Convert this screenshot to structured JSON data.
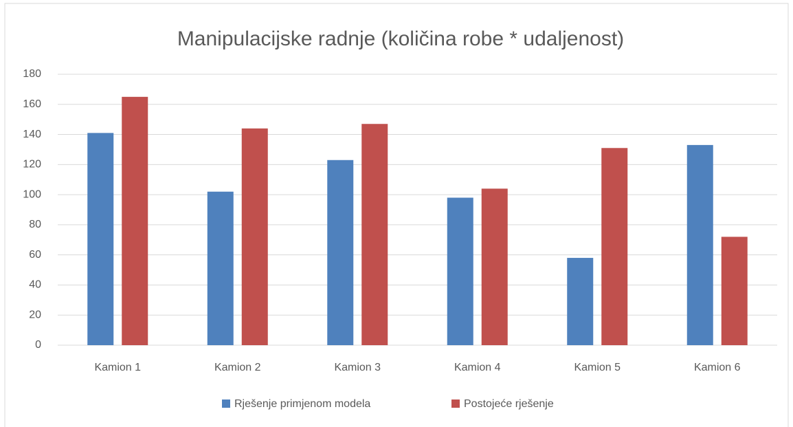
{
  "chart_data": {
    "type": "bar",
    "title": "Manipulacijske radnje (količina robe * udaljenost)",
    "categories": [
      "Kamion 1",
      "Kamion 2",
      "Kamion 3",
      "Kamion 4",
      "Kamion 5",
      "Kamion 6"
    ],
    "series": [
      {
        "name": "Rješenje primjenom modela",
        "color": "#4f81bd",
        "values": [
          141,
          102,
          123,
          98,
          58,
          133
        ]
      },
      {
        "name": "Postojeće rješenje",
        "color": "#c0504d",
        "values": [
          165,
          144,
          147,
          104,
          131,
          72
        ]
      }
    ],
    "ylim": [
      0,
      180
    ],
    "yticks": [
      0,
      20,
      40,
      60,
      80,
      100,
      120,
      140,
      160,
      180
    ],
    "grid": true,
    "legend": "bottom"
  }
}
